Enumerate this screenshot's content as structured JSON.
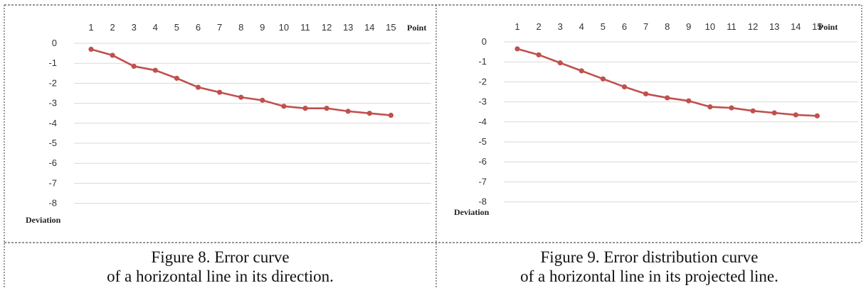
{
  "colors": {
    "line": "#c0504d",
    "grid": "#d9d9d9",
    "border": "#555555"
  },
  "chart_data": [
    {
      "type": "line",
      "x": [
        1,
        2,
        3,
        4,
        5,
        6,
        7,
        8,
        9,
        10,
        11,
        12,
        13,
        14,
        15
      ],
      "values": [
        -0.3,
        -0.6,
        -1.15,
        -1.35,
        -1.75,
        -2.2,
        -2.45,
        -2.7,
        -2.85,
        -3.15,
        -3.25,
        -3.25,
        -3.4,
        -3.5,
        -3.6
      ],
      "xlabel": "Point",
      "ylabel": "Deviation",
      "ylim": [
        -8.5,
        0
      ],
      "yticks": [
        0,
        -1,
        -2,
        -3,
        -4,
        -5,
        -6,
        -7,
        -8
      ],
      "grid": true,
      "x_axis_position": "top",
      "caption": [
        "Figure 8. Error curve",
        "of a horizontal line in its direction."
      ]
    },
    {
      "type": "line",
      "x": [
        1,
        2,
        3,
        4,
        5,
        6,
        7,
        8,
        9,
        10,
        11,
        12,
        13,
        14,
        15
      ],
      "values": [
        -0.35,
        -0.65,
        -1.05,
        -1.45,
        -1.85,
        -2.25,
        -2.6,
        -2.8,
        -2.95,
        -3.25,
        -3.3,
        -3.45,
        -3.55,
        -3.65,
        -3.7
      ],
      "xlabel": "Point",
      "ylabel": "Deviation",
      "ylim": [
        -8.5,
        0
      ],
      "yticks": [
        0,
        -1,
        -2,
        -3,
        -4,
        -5,
        -6,
        -7,
        -8
      ],
      "grid": true,
      "x_axis_position": "top",
      "caption": [
        "Figure 9. Error distribution curve",
        "of a horizontal line in its projected line."
      ]
    }
  ]
}
